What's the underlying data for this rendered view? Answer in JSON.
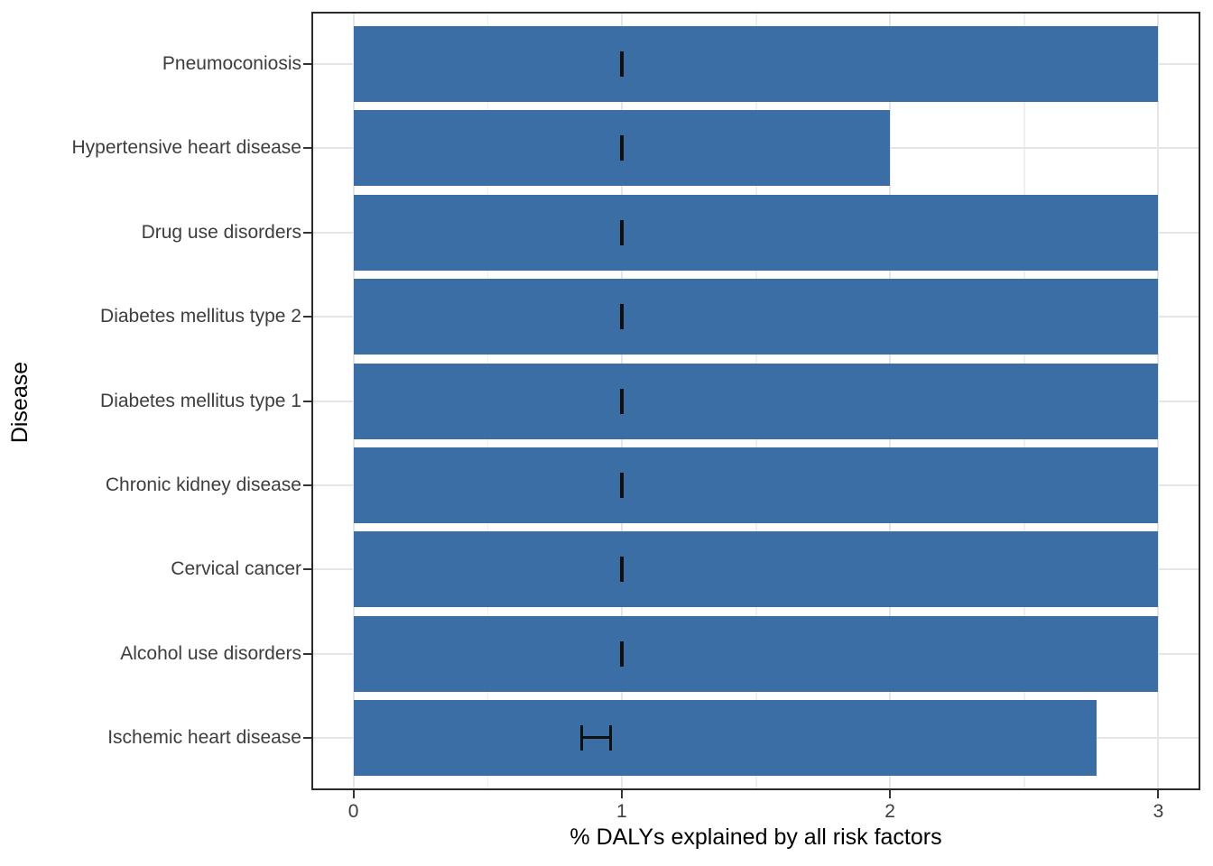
{
  "chart_data": {
    "type": "bar",
    "orientation": "horizontal",
    "title": "",
    "xlabel": "% DALYs explained by all risk factors",
    "ylabel": "Disease",
    "categories_top_to_bottom": [
      "Pneumoconiosis",
      "Hypertensive heart disease",
      "Drug use disorders",
      "Diabetes mellitus type 2",
      "Diabetes mellitus type 1",
      "Chronic kidney disease",
      "Cervical cancer",
      "Alcohol use disorders",
      "Ischemic heart disease"
    ],
    "values": [
      3.0,
      2.0,
      3.0,
      3.0,
      3.0,
      3.0,
      3.0,
      3.0,
      2.77
    ],
    "error_low": [
      1.0,
      1.0,
      1.0,
      1.0,
      1.0,
      1.0,
      1.0,
      1.0,
      0.85
    ],
    "error_high": [
      1.0,
      1.0,
      1.0,
      1.0,
      1.0,
      1.0,
      1.0,
      1.0,
      0.96
    ],
    "x_ticks": [
      0,
      1,
      2,
      3
    ],
    "x_tick_labels": [
      "0",
      "1",
      "2",
      "3"
    ],
    "x_minor_gridlines": [
      0.5,
      1.5,
      2.5
    ],
    "xlim": [
      -0.15,
      3.15
    ],
    "grid": "major and minor vertical, major horizontal at category centers",
    "legend": "none",
    "colors": {
      "bar_fill": "#3B6EA5",
      "error_bar": "#101010",
      "grid_major": "#E5E5E5",
      "grid_minor": "#F0F0F0",
      "panel_border": "#2A2A2A",
      "axis_tick": "#333333",
      "tick_label_text": "#3D3D3D",
      "axis_title_text": "#000000",
      "background": "#FFFFFF"
    }
  }
}
